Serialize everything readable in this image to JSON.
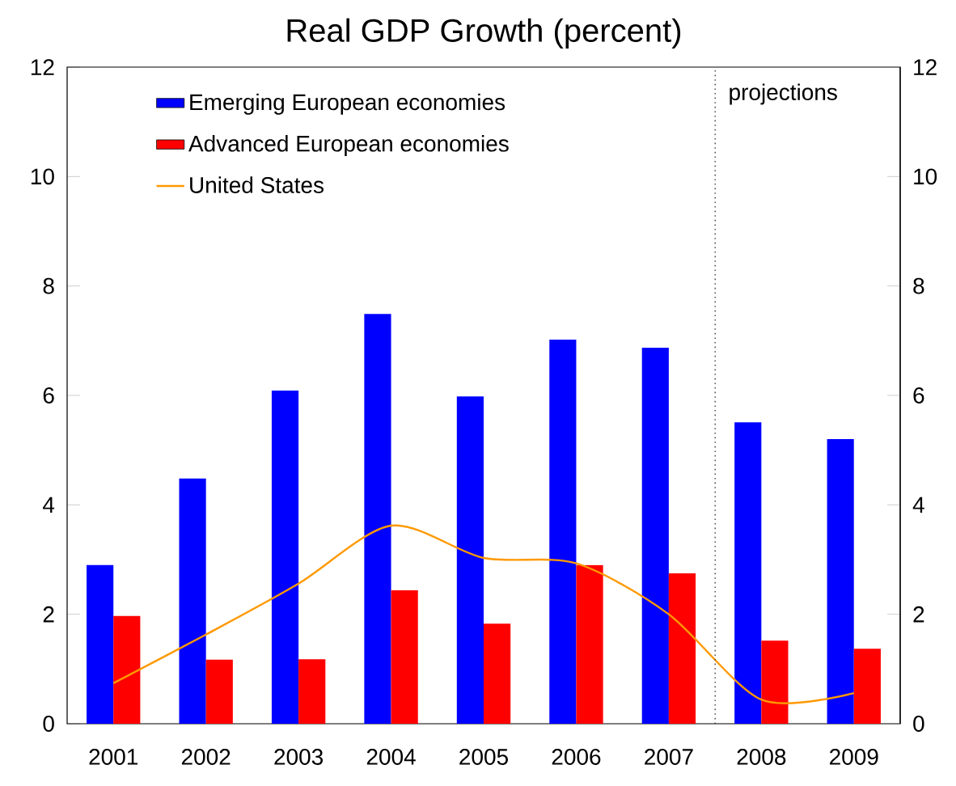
{
  "chart_data": {
    "type": "bar",
    "title": "Real GDP Growth (percent)",
    "categories": [
      "2001",
      "2002",
      "2003",
      "2004",
      "2005",
      "2006",
      "2007",
      "2008",
      "2009"
    ],
    "series": [
      {
        "name": "Emerging European economies",
        "color": "#0000ff",
        "values": [
          2.9,
          4.48,
          6.09,
          7.49,
          5.98,
          7.02,
          6.87,
          5.51,
          5.2
        ]
      },
      {
        "name": "Advanced European economies",
        "color": "#ff0000",
        "values": [
          1.97,
          1.17,
          1.18,
          2.44,
          1.83,
          2.9,
          2.75,
          1.52,
          1.37
        ]
      },
      {
        "name": "United States",
        "type": "line",
        "color": "#ff9900",
        "values": [
          0.74,
          1.63,
          2.56,
          3.62,
          3.03,
          2.93,
          2.0,
          0.44,
          0.56
        ]
      }
    ],
    "ylim": [
      0,
      12
    ],
    "yticks": [
      0,
      2,
      4,
      6,
      8,
      10,
      12
    ],
    "y2lim": [
      0,
      12
    ],
    "y2ticks": [
      0,
      2,
      4,
      6,
      8,
      10,
      12
    ],
    "annotations": [
      "projections"
    ],
    "legend": "top left",
    "grid": false,
    "marker": "none"
  }
}
